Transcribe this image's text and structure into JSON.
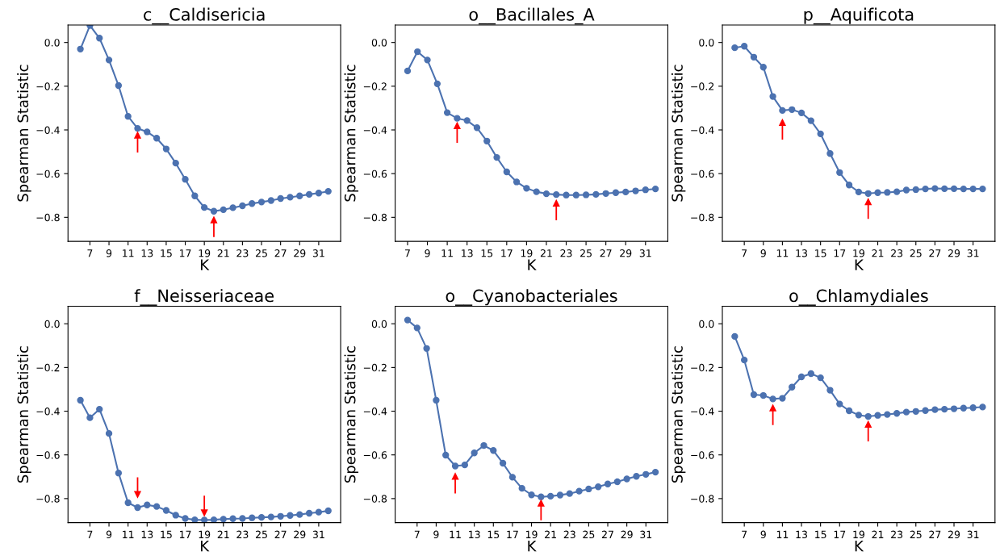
{
  "chart_data": [
    {
      "type": "line",
      "title": "c__Caldisericia",
      "xlabel": "K",
      "ylabel": "Spearman Statistic",
      "marker": "circle",
      "grid": false,
      "x": [
        6,
        7,
        8,
        9,
        10,
        11,
        12,
        13,
        14,
        15,
        16,
        17,
        18,
        19,
        20,
        21,
        22,
        23,
        24,
        25,
        26,
        27,
        28,
        29,
        30,
        31,
        32
      ],
      "series": [
        {
          "color": "#4c72b0",
          "values": [
            -0.03,
            0.078,
            0.02,
            -0.08,
            -0.197,
            -0.338,
            -0.393,
            -0.409,
            -0.438,
            -0.487,
            -0.552,
            -0.626,
            -0.702,
            -0.755,
            -0.772,
            -0.765,
            -0.756,
            -0.747,
            -0.737,
            -0.73,
            -0.723,
            -0.714,
            -0.708,
            -0.702,
            -0.695,
            -0.689,
            -0.681
          ]
        },
        {
          "type": "line",
          "color": "#ff0000",
          "marker": "triangle",
          "x": [
            12,
            12
          ],
          "values": [
            -0.5,
            -0.424
          ]
        },
        {
          "type": "line",
          "color": "#ff0000",
          "marker": "triangle",
          "x": [
            20,
            20
          ],
          "values": [
            -0.887,
            -0.812
          ]
        }
      ],
      "xlim": [
        4.7,
        33.3
      ],
      "xticks": [
        7,
        9,
        11,
        13,
        15,
        17,
        19,
        21,
        23,
        25,
        27,
        29,
        31
      ],
      "ylim": [
        -0.91,
        0.08
      ],
      "yticks": [
        {
          "value": -0.8,
          "label": "−0.8"
        },
        {
          "value": -0.6,
          "label": "−0.6"
        },
        {
          "value": -0.4,
          "label": "−0.4"
        },
        {
          "value": -0.2,
          "label": "−0.2"
        },
        {
          "value": 0.0,
          "label": "0.0"
        }
      ]
    },
    {
      "type": "line",
      "title": "o__Bacillales_A",
      "xlabel": "K",
      "ylabel": "Spearman Statistic",
      "marker": "circle",
      "grid": false,
      "x": [
        7,
        8,
        9,
        10,
        11,
        12,
        13,
        14,
        15,
        16,
        17,
        18,
        19,
        20,
        21,
        22,
        23,
        24,
        25,
        26,
        27,
        28,
        29,
        30,
        31,
        32
      ],
      "series": [
        {
          "color": "#4c72b0",
          "values": [
            -0.13,
            -0.042,
            -0.08,
            -0.189,
            -0.321,
            -0.347,
            -0.357,
            -0.39,
            -0.451,
            -0.526,
            -0.592,
            -0.638,
            -0.667,
            -0.683,
            -0.692,
            -0.696,
            -0.698,
            -0.698,
            -0.697,
            -0.695,
            -0.691,
            -0.687,
            -0.684,
            -0.679,
            -0.674,
            -0.67
          ]
        },
        {
          "type": "line",
          "color": "#ff0000",
          "marker": "triangle",
          "x": [
            12,
            12
          ],
          "values": [
            -0.456,
            -0.381
          ]
        },
        {
          "type": "line",
          "color": "#ff0000",
          "marker": "triangle",
          "x": [
            22,
            22
          ],
          "values": [
            -0.81,
            -0.735
          ]
        }
      ],
      "xlim": [
        5.75,
        33.25
      ],
      "xticks": [
        7,
        9,
        11,
        13,
        15,
        17,
        19,
        21,
        23,
        25,
        27,
        29,
        31
      ],
      "ylim": [
        -0.91,
        0.08
      ],
      "yticks": [
        {
          "value": -0.8,
          "label": "−0.8"
        },
        {
          "value": -0.6,
          "label": "−0.6"
        },
        {
          "value": -0.4,
          "label": "−0.4"
        },
        {
          "value": -0.2,
          "label": "−0.2"
        },
        {
          "value": 0.0,
          "label": "0.0"
        }
      ]
    },
    {
      "type": "line",
      "title": "p__Aquificota",
      "xlabel": "K",
      "ylabel": "Spearman Statistic",
      "marker": "circle",
      "grid": false,
      "x": [
        6,
        7,
        8,
        9,
        10,
        11,
        12,
        13,
        14,
        15,
        16,
        17,
        18,
        19,
        20,
        21,
        22,
        23,
        24,
        25,
        26,
        27,
        28,
        29,
        30,
        31,
        32
      ],
      "series": [
        {
          "color": "#4c72b0",
          "values": [
            -0.024,
            -0.017,
            -0.067,
            -0.113,
            -0.247,
            -0.311,
            -0.307,
            -0.322,
            -0.358,
            -0.418,
            -0.508,
            -0.595,
            -0.652,
            -0.684,
            -0.691,
            -0.687,
            -0.686,
            -0.683,
            -0.675,
            -0.673,
            -0.67,
            -0.668,
            -0.669,
            -0.669,
            -0.67,
            -0.67,
            -0.67
          ]
        },
        {
          "type": "line",
          "color": "#ff0000",
          "marker": "triangle",
          "x": [
            11,
            11
          ],
          "values": [
            -0.441,
            -0.366
          ]
        },
        {
          "type": "line",
          "color": "#ff0000",
          "marker": "triangle",
          "x": [
            20,
            20
          ],
          "values": [
            -0.804,
            -0.729
          ]
        }
      ],
      "xlim": [
        4.7,
        33.3
      ],
      "xticks": [
        7,
        9,
        11,
        13,
        15,
        17,
        19,
        21,
        23,
        25,
        27,
        29,
        31
      ],
      "ylim": [
        -0.91,
        0.08
      ],
      "yticks": [
        {
          "value": -0.8,
          "label": "−0.8"
        },
        {
          "value": -0.6,
          "label": "−0.6"
        },
        {
          "value": -0.4,
          "label": "−0.4"
        },
        {
          "value": -0.2,
          "label": "−0.2"
        },
        {
          "value": 0.0,
          "label": "0.0"
        }
      ]
    },
    {
      "type": "line",
      "title": "f__Neisseriaceae",
      "xlabel": "K",
      "ylabel": "Spearman Statistic",
      "marker": "circle",
      "grid": false,
      "x": [
        6,
        7,
        8,
        9,
        10,
        11,
        12,
        13,
        14,
        15,
        16,
        17,
        18,
        19,
        20,
        21,
        22,
        23,
        24,
        25,
        26,
        27,
        28,
        29,
        30,
        31,
        32
      ],
      "series": [
        {
          "color": "#4c72b0",
          "values": [
            -0.35,
            -0.43,
            -0.391,
            -0.502,
            -0.683,
            -0.819,
            -0.841,
            -0.829,
            -0.836,
            -0.854,
            -0.876,
            -0.891,
            -0.897,
            -0.898,
            -0.897,
            -0.894,
            -0.892,
            -0.891,
            -0.888,
            -0.886,
            -0.884,
            -0.881,
            -0.877,
            -0.873,
            -0.867,
            -0.862,
            -0.856
          ]
        },
        {
          "type": "line",
          "color": "#ff0000",
          "marker": "triangle",
          "x": [
            12,
            12
          ],
          "values": [
            -0.706,
            -0.781
          ]
        },
        {
          "type": "line",
          "color": "#ff0000",
          "marker": "triangle",
          "x": [
            19,
            19
          ],
          "values": [
            -0.79,
            -0.865
          ]
        }
      ],
      "xlim": [
        4.7,
        33.3
      ],
      "xticks": [
        7,
        9,
        11,
        13,
        15,
        17,
        19,
        21,
        23,
        25,
        27,
        29,
        31
      ],
      "ylim": [
        -0.91,
        0.08
      ],
      "yticks": [
        {
          "value": -0.8,
          "label": "−0.8"
        },
        {
          "value": -0.6,
          "label": "−0.6"
        },
        {
          "value": -0.4,
          "label": "−0.4"
        },
        {
          "value": -0.2,
          "label": "−0.2"
        },
        {
          "value": 0.0,
          "label": "0.0"
        }
      ]
    },
    {
      "type": "line",
      "title": "o__Cyanobacteriales",
      "xlabel": "K",
      "ylabel": "Spearman Statistic",
      "marker": "circle",
      "grid": false,
      "x": [
        6,
        7,
        8,
        9,
        10,
        11,
        12,
        13,
        14,
        15,
        16,
        17,
        18,
        19,
        20,
        21,
        22,
        23,
        24,
        25,
        26,
        27,
        28,
        29,
        30,
        31,
        32
      ],
      "series": [
        {
          "color": "#4c72b0",
          "values": [
            0.017,
            -0.019,
            -0.113,
            -0.35,
            -0.601,
            -0.651,
            -0.646,
            -0.591,
            -0.557,
            -0.58,
            -0.638,
            -0.702,
            -0.753,
            -0.783,
            -0.792,
            -0.789,
            -0.784,
            -0.777,
            -0.766,
            -0.756,
            -0.746,
            -0.733,
            -0.723,
            -0.71,
            -0.698,
            -0.689,
            -0.679
          ]
        },
        {
          "type": "line",
          "color": "#ff0000",
          "marker": "triangle",
          "x": [
            11,
            11
          ],
          "values": [
            -0.773,
            -0.698
          ]
        },
        {
          "type": "line",
          "color": "#ff0000",
          "marker": "triangle",
          "x": [
            20,
            20
          ],
          "values": [
            -0.896,
            -0.821
          ]
        }
      ],
      "xlim": [
        4.7,
        33.3
      ],
      "xticks": [
        7,
        9,
        11,
        13,
        15,
        17,
        19,
        21,
        23,
        25,
        27,
        29,
        31
      ],
      "ylim": [
        -0.91,
        0.08
      ],
      "yticks": [
        {
          "value": -0.8,
          "label": "−0.8"
        },
        {
          "value": -0.6,
          "label": "−0.6"
        },
        {
          "value": -0.4,
          "label": "−0.4"
        },
        {
          "value": -0.2,
          "label": "−0.2"
        },
        {
          "value": 0.0,
          "label": "0.0"
        }
      ]
    },
    {
      "type": "line",
      "title": "o__Chlamydiales",
      "xlabel": "K",
      "ylabel": "Spearman Statistic",
      "marker": "circle",
      "grid": false,
      "x": [
        6,
        7,
        8,
        9,
        10,
        11,
        12,
        13,
        14,
        15,
        16,
        17,
        18,
        19,
        20,
        21,
        22,
        23,
        24,
        25,
        26,
        27,
        28,
        29,
        30,
        31,
        32
      ],
      "series": [
        {
          "color": "#4c72b0",
          "values": [
            -0.058,
            -0.166,
            -0.324,
            -0.328,
            -0.344,
            -0.341,
            -0.29,
            -0.243,
            -0.228,
            -0.247,
            -0.304,
            -0.367,
            -0.398,
            -0.418,
            -0.424,
            -0.419,
            -0.415,
            -0.41,
            -0.404,
            -0.401,
            -0.397,
            -0.393,
            -0.391,
            -0.389,
            -0.386,
            -0.384,
            -0.381
          ]
        },
        {
          "type": "line",
          "color": "#ff0000",
          "marker": "triangle",
          "x": [
            10,
            10
          ],
          "values": [
            -0.46,
            -0.385
          ]
        },
        {
          "type": "line",
          "color": "#ff0000",
          "marker": "triangle",
          "x": [
            20,
            20
          ],
          "values": [
            -0.535,
            -0.46
          ]
        }
      ],
      "xlim": [
        4.7,
        33.3
      ],
      "xticks": [
        7,
        9,
        11,
        13,
        15,
        17,
        19,
        21,
        23,
        25,
        27,
        29,
        31
      ],
      "ylim": [
        -0.91,
        0.08
      ],
      "yticks": [
        {
          "value": -0.8,
          "label": "−0.8"
        },
        {
          "value": -0.6,
          "label": "−0.6"
        },
        {
          "value": -0.4,
          "label": "−0.4"
        },
        {
          "value": -0.2,
          "label": "−0.2"
        },
        {
          "value": 0.0,
          "label": "0.0"
        }
      ]
    }
  ]
}
